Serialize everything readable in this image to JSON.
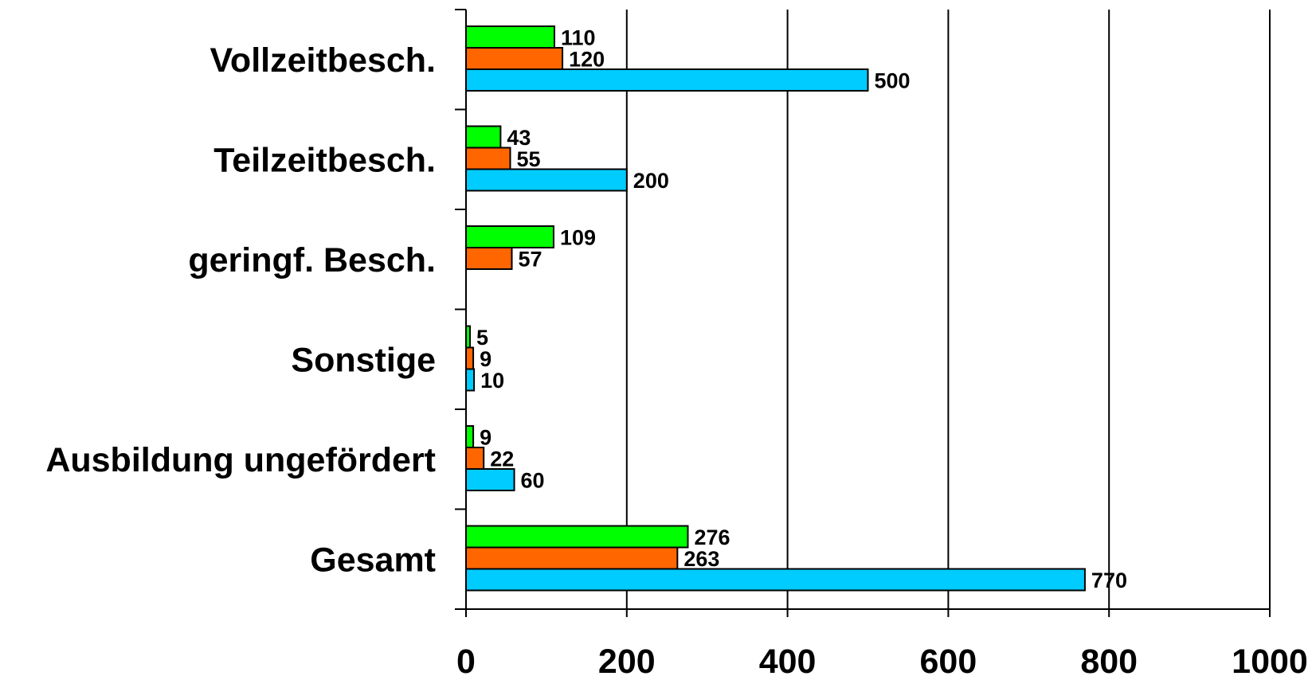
{
  "chart_data": {
    "type": "bar",
    "orientation": "horizontal",
    "categories": [
      "Vollzeitbesch.",
      "Teilzeitbesch.",
      "geringf. Besch.",
      "Sonstige",
      "Ausbildung ungefördert",
      "Gesamt"
    ],
    "series": [
      {
        "color": "#00ff00",
        "values": [
          110,
          43,
          109,
          5,
          9,
          276
        ]
      },
      {
        "color": "#ff6600",
        "values": [
          120,
          55,
          57,
          9,
          22,
          263
        ]
      },
      {
        "color": "#00ccff",
        "values": [
          500,
          200,
          null,
          10,
          60,
          770
        ]
      }
    ],
    "xlim": [
      0,
      1000
    ],
    "xticks": [
      "0",
      "200",
      "400",
      "600",
      "800",
      "1000"
    ],
    "grid": "vertical",
    "legend": "none",
    "title": "",
    "xlabel": "",
    "ylabel": ""
  }
}
